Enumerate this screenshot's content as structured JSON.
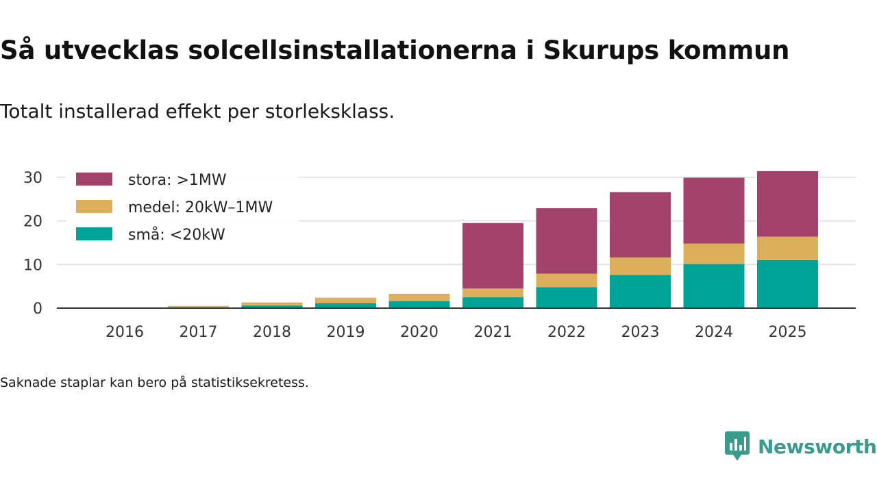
{
  "title": "Så utvecklas solcellsinstallationerna i Skurups kommun",
  "subtitle": "Totalt installerad effekt per storleksklass.",
  "note": "Saknade staplar kan bero på statistiksekretess.",
  "brand": {
    "name": "Newsworthy",
    "icon": "newsworthy-logo-icon",
    "color": "#3a9a8c"
  },
  "chart_data": {
    "type": "bar",
    "stacked": true,
    "title": "Så utvecklas solcellsinstallationerna i Skurups kommun",
    "subtitle": "Totalt installerad effekt per storleksklass.",
    "xlabel": "",
    "ylabel": "",
    "ylim": [
      0,
      33
    ],
    "yticks": [
      0,
      10,
      20,
      30
    ],
    "grid": true,
    "legend_position": "top-left",
    "categories": [
      "2016",
      "2017",
      "2018",
      "2019",
      "2020",
      "2021",
      "2022",
      "2023",
      "2024",
      "2025"
    ],
    "series": [
      {
        "name": "små: <20kW",
        "color": "#00a398",
        "values": [
          0.0,
          0.2,
          0.6,
          1.1,
          1.6,
          2.5,
          4.8,
          7.6,
          10.1,
          11.0
        ]
      },
      {
        "name": "medel: 20kW–1MW",
        "color": "#dcaf5a",
        "values": [
          0.0,
          0.3,
          0.7,
          1.3,
          1.7,
          2.0,
          3.1,
          4.0,
          4.7,
          5.4
        ]
      },
      {
        "name": "stora: >1MW",
        "color": "#a3426a",
        "values": [
          0.0,
          0.0,
          0.0,
          0.0,
          0.0,
          15.0,
          15.0,
          15.0,
          15.1,
          15.0
        ]
      }
    ],
    "legend_order": [
      "stora: >1MW",
      "medel: 20kW–1MW",
      "små: <20kW"
    ]
  }
}
